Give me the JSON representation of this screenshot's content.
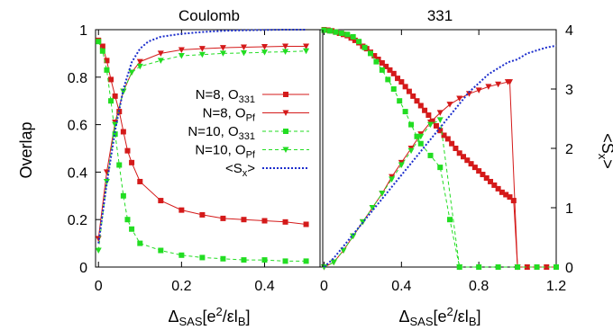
{
  "chart_data": [
    {
      "type": "line",
      "title": "Coulomb",
      "ylabel": "Overlap",
      "xlabel": "ΔSAS[e²/εlB]",
      "xlim": [
        -0.007,
        0.54
      ],
      "ylim": [
        0,
        1
      ],
      "y2lim": [
        0,
        4
      ],
      "xticks": [
        "0",
        "0.2",
        "0.4"
      ],
      "yticks": [
        "0",
        "0.2",
        "0.4",
        "0.6",
        "0.8",
        "1"
      ],
      "legend": "center-right",
      "series": [
        {
          "name": "N=8, O331",
          "color": "#d41a1a",
          "style": "solid",
          "marker": "square",
          "axis": "left",
          "x": [
            0,
            0.01,
            0.02,
            0.03,
            0.04,
            0.05,
            0.06,
            0.07,
            0.08,
            0.1,
            0.15,
            0.2,
            0.25,
            0.3,
            0.35,
            0.4,
            0.45,
            0.5
          ],
          "y": [
            0.955,
            0.93,
            0.87,
            0.79,
            0.72,
            0.655,
            0.57,
            0.49,
            0.44,
            0.36,
            0.28,
            0.24,
            0.22,
            0.205,
            0.2,
            0.195,
            0.19,
            0.18
          ]
        },
        {
          "name": "N=8, OPf",
          "color": "#d41a1a",
          "style": "solid",
          "marker": "triangle-down",
          "axis": "left",
          "x": [
            0,
            0.02,
            0.04,
            0.06,
            0.08,
            0.1,
            0.15,
            0.2,
            0.25,
            0.3,
            0.35,
            0.4,
            0.45,
            0.5
          ],
          "y": [
            0.12,
            0.4,
            0.61,
            0.74,
            0.82,
            0.865,
            0.9,
            0.915,
            0.92,
            0.924,
            0.926,
            0.928,
            0.93,
            0.93
          ]
        },
        {
          "name": "N=10, O331",
          "color": "#22dd22",
          "style": "dashed",
          "marker": "square",
          "axis": "left",
          "x": [
            0,
            0.01,
            0.02,
            0.03,
            0.04,
            0.05,
            0.06,
            0.07,
            0.08,
            0.1,
            0.15,
            0.2,
            0.25,
            0.3,
            0.35,
            0.4,
            0.45,
            0.5
          ],
          "y": [
            0.95,
            0.91,
            0.83,
            0.7,
            0.56,
            0.43,
            0.3,
            0.2,
            0.16,
            0.1,
            0.07,
            0.05,
            0.04,
            0.035,
            0.03,
            0.03,
            0.025,
            0.025
          ]
        },
        {
          "name": "N=10, OPf",
          "color": "#22dd22",
          "style": "dashed",
          "marker": "triangle-down",
          "axis": "left",
          "x": [
            0,
            0.02,
            0.04,
            0.06,
            0.08,
            0.1,
            0.15,
            0.2,
            0.25,
            0.3,
            0.35,
            0.4,
            0.45,
            0.5
          ],
          "y": [
            0.07,
            0.36,
            0.6,
            0.74,
            0.82,
            0.845,
            0.87,
            0.89,
            0.895,
            0.9,
            0.902,
            0.905,
            0.907,
            0.91
          ]
        },
        {
          "name": "<Sx>",
          "color": "#1a2ccc",
          "style": "dotted",
          "marker": "none",
          "axis": "right",
          "x": [
            0,
            0.02,
            0.04,
            0.06,
            0.08,
            0.1,
            0.12,
            0.15,
            0.2,
            0.25,
            0.3,
            0.35,
            0.4,
            0.45,
            0.5
          ],
          "y": [
            0.4,
            1.4,
            2.3,
            3.0,
            3.45,
            3.68,
            3.8,
            3.88,
            3.93,
            3.96,
            3.98,
            3.99,
            3.995,
            4.0,
            4.0
          ]
        }
      ]
    },
    {
      "type": "line",
      "title": "331",
      "ylabel": "<Sx>",
      "xlabel": "ΔSAS[e²/εlB]",
      "xlim": [
        -0.007,
        1.2
      ],
      "ylim": [
        0,
        1
      ],
      "y2lim": [
        0,
        4
      ],
      "xticks": [
        "0",
        "0.4",
        "0.8",
        "1.2"
      ],
      "y2ticks": [
        "0",
        "1",
        "2",
        "3",
        "4"
      ],
      "series": [
        {
          "name": "N=8, O331",
          "color": "#d41a1a",
          "style": "solid",
          "marker": "square",
          "axis": "left",
          "x": [
            0,
            0.02,
            0.04,
            0.06,
            0.08,
            0.1,
            0.12,
            0.14,
            0.16,
            0.18,
            0.2,
            0.22,
            0.24,
            0.26,
            0.28,
            0.3,
            0.32,
            0.34,
            0.36,
            0.38,
            0.4,
            0.42,
            0.44,
            0.46,
            0.48,
            0.5,
            0.52,
            0.54,
            0.56,
            0.58,
            0.6,
            0.62,
            0.64,
            0.66,
            0.68,
            0.7,
            0.72,
            0.74,
            0.76,
            0.78,
            0.8,
            0.82,
            0.84,
            0.86,
            0.88,
            0.9,
            0.92,
            0.94,
            0.96,
            0.98,
            1.0,
            1.05,
            1.1,
            1.15,
            1.2
          ],
          "y": [
            1.0,
            0.998,
            0.995,
            0.99,
            0.985,
            0.98,
            0.975,
            0.965,
            0.955,
            0.945,
            0.93,
            0.92,
            0.905,
            0.89,
            0.875,
            0.86,
            0.845,
            0.83,
            0.815,
            0.795,
            0.78,
            0.76,
            0.74,
            0.72,
            0.7,
            0.68,
            0.66,
            0.64,
            0.615,
            0.595,
            0.575,
            0.555,
            0.54,
            0.52,
            0.5,
            0.48,
            0.465,
            0.45,
            0.435,
            0.42,
            0.405,
            0.39,
            0.375,
            0.36,
            0.345,
            0.33,
            0.315,
            0.305,
            0.295,
            0.28,
            0.0,
            0.0,
            0.0,
            0.0,
            0.0
          ]
        },
        {
          "name": "N=8, OPf",
          "color": "#d41a1a",
          "style": "solid",
          "marker": "triangle-down",
          "axis": "left",
          "x": [
            0,
            0.05,
            0.1,
            0.15,
            0.2,
            0.25,
            0.3,
            0.35,
            0.4,
            0.45,
            0.5,
            0.55,
            0.6,
            0.65,
            0.7,
            0.75,
            0.8,
            0.85,
            0.9,
            0.95,
            0.96,
            1.0
          ],
          "y": [
            0.0,
            0.02,
            0.07,
            0.13,
            0.19,
            0.25,
            0.31,
            0.38,
            0.44,
            0.5,
            0.56,
            0.61,
            0.65,
            0.685,
            0.71,
            0.73,
            0.745,
            0.76,
            0.77,
            0.78,
            0.78,
            0.0
          ]
        },
        {
          "name": "N=10, O331",
          "color": "#22dd22",
          "style": "dashed",
          "marker": "square",
          "axis": "left",
          "x": [
            0,
            0.03,
            0.06,
            0.09,
            0.12,
            0.15,
            0.18,
            0.21,
            0.24,
            0.27,
            0.3,
            0.33,
            0.36,
            0.39,
            0.42,
            0.45,
            0.48,
            0.5,
            0.55,
            0.6,
            0.65,
            0.7,
            0.8,
            0.9,
            1.0,
            1.1,
            1.2
          ],
          "y": [
            0.998,
            0.995,
            0.99,
            0.985,
            0.98,
            0.97,
            0.95,
            0.925,
            0.9,
            0.865,
            0.83,
            0.79,
            0.75,
            0.7,
            0.655,
            0.6,
            0.55,
            0.52,
            0.47,
            0.42,
            0.2,
            0.0,
            0.0,
            0.0,
            0.0,
            0.0,
            0.0
          ]
        },
        {
          "name": "N=10, OPf",
          "color": "#22dd22",
          "style": "dashed",
          "marker": "triangle-down",
          "axis": "left",
          "x": [
            0,
            0.05,
            0.1,
            0.15,
            0.2,
            0.25,
            0.3,
            0.35,
            0.4,
            0.45,
            0.5,
            0.55,
            0.6,
            0.7
          ],
          "y": [
            0.0,
            0.02,
            0.07,
            0.13,
            0.19,
            0.25,
            0.31,
            0.37,
            0.43,
            0.49,
            0.55,
            0.6,
            0.62,
            0.0
          ]
        },
        {
          "name": "<Sx>",
          "color": "#1a2ccc",
          "style": "dotted",
          "marker": "none",
          "axis": "right",
          "x": [
            0,
            0.05,
            0.1,
            0.15,
            0.2,
            0.25,
            0.3,
            0.35,
            0.4,
            0.45,
            0.5,
            0.55,
            0.6,
            0.65,
            0.7,
            0.75,
            0.8,
            0.85,
            0.9,
            0.95,
            1.0,
            1.05,
            1.1,
            1.15,
            1.2
          ],
          "y": [
            0.0,
            0.15,
            0.35,
            0.55,
            0.75,
            0.95,
            1.15,
            1.35,
            1.55,
            1.75,
            1.95,
            2.15,
            2.35,
            2.55,
            2.75,
            2.95,
            3.1,
            3.25,
            3.35,
            3.45,
            3.5,
            3.6,
            3.65,
            3.7,
            3.73
          ]
        }
      ]
    }
  ],
  "legend_entries": [
    {
      "label": "N=8, O",
      "sub": "331",
      "color": "#d41a1a",
      "style": "solid",
      "marker": "square"
    },
    {
      "label": "N=8, O",
      "sub": "Pf",
      "color": "#d41a1a",
      "style": "solid",
      "marker": "triangle-down"
    },
    {
      "label": "N=10, O",
      "sub": "331",
      "color": "#22dd22",
      "style": "dashed",
      "marker": "square"
    },
    {
      "label": "N=10, O",
      "sub": "Pf",
      "color": "#22dd22",
      "style": "dashed",
      "marker": "triangle-down"
    },
    {
      "label": "<S",
      "sub": "x",
      "tail": ">",
      "color": "#1a2ccc",
      "style": "dotted",
      "marker": "none"
    }
  ],
  "labels": {
    "ylabel_left": "Overlap",
    "ylabel_right_main": "<S",
    "ylabel_right_sub": "x",
    "ylabel_right_tail": ">",
    "xlabel_main": "Δ",
    "xlabel_sub1": "SAS",
    "xlabel_mid": "[e",
    "xlabel_sup": "2",
    "xlabel_mid2": "/εl",
    "xlabel_sub2": "B",
    "xlabel_end": "]"
  }
}
